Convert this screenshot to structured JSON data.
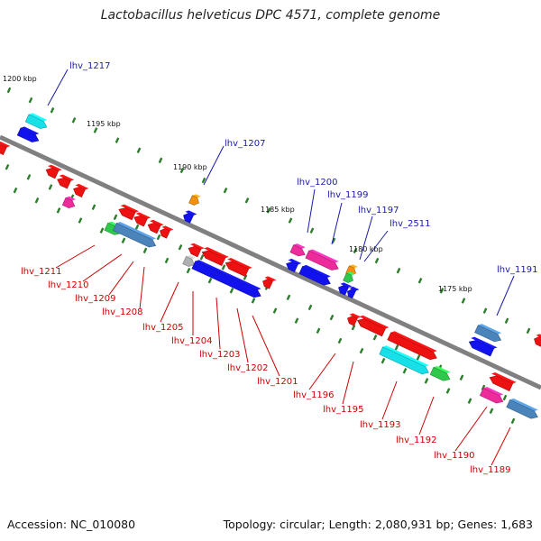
{
  "title": "Lactobacillus helveticus DPC 4571, complete genome",
  "footer": {
    "accession": "Accession: NC_010080",
    "topology": "Topology: circular; Length: 2,080,931 bp; Genes: 1,683"
  },
  "scale_labels": [
    "1200 kbp",
    "1195 kbp",
    "1190 kbp",
    "1185 kbp",
    "1180 kbp",
    "1175 kbp"
  ],
  "colors": {
    "backbone": "#808080",
    "tick": "#2e7d2e",
    "label_upper": "#1a1aa8",
    "label_lower": "#cc0000"
  },
  "upper_genes": [
    "lhv_1217",
    "lhv_1207",
    "lhv_1200",
    "lhv_1199",
    "lhv_1197",
    "lhv_2511",
    "lhv_1191"
  ],
  "lower_genes": [
    "lhv_1211",
    "lhv_1210",
    "lhv_1209",
    "lhv_1208",
    "lhv_1205",
    "lhv_1204",
    "lhv_1203",
    "lhv_1202",
    "lhv_1201",
    "lhv_1196",
    "lhv_1195",
    "lhv_1193",
    "lhv_1192",
    "lhv_1190",
    "lhv_1189"
  ]
}
